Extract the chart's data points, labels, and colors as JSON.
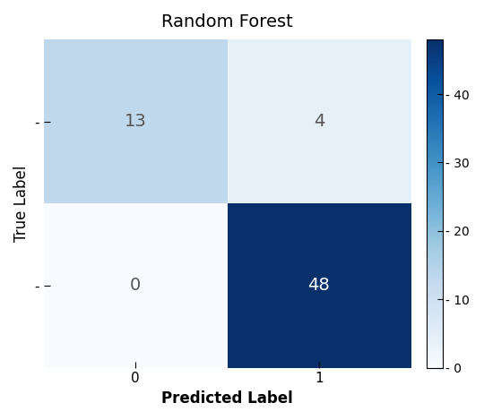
{
  "title": "Random Forest",
  "matrix": [
    [
      13,
      4
    ],
    [
      0,
      48
    ]
  ],
  "xlabel": "Predicted Label",
  "ylabel": "True Label",
  "x_tick_labels": [
    "0",
    "1"
  ],
  "y_tick_labels": [
    "-",
    "-"
  ],
  "colormap": "Blues",
  "vmin": 0,
  "vmax": 48,
  "text_colors": {
    "light": "#555555",
    "dark": "#ffffff"
  },
  "threshold": 24,
  "figsize": [
    5.4,
    4.69
  ],
  "dpi": 100,
  "title_fontsize": 14,
  "label_fontsize": 12,
  "tick_fontsize": 11,
  "annot_fontsize": 14,
  "cbar_ticks": [
    0,
    10,
    20,
    30,
    40
  ]
}
